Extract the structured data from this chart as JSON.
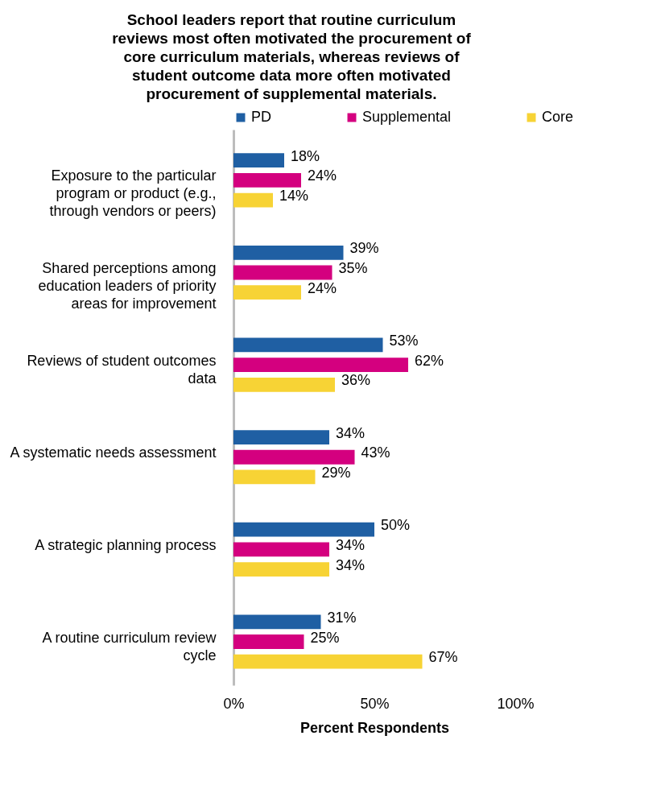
{
  "chart_data": {
    "type": "bar",
    "orientation": "horizontal",
    "title": "School leaders report that routine curriculum reviews most often motivated the procurement of core curriculum materials, whereas reviews of student outcome data more often motivated procurement of supplemental materials.",
    "xlabel": "Percent Respondents",
    "categories": [
      "Exposure to the particular program or product (e.g., through vendors or peers)",
      "Shared perceptions among education leaders of priority areas for improvement",
      "Reviews of student outcomes data",
      "A systematic needs assessment",
      "A strategic planning process",
      "A routine curriculum review cycle"
    ],
    "series": [
      {
        "name": "PD",
        "color": "#1f5fa3",
        "values": [
          18,
          39,
          53,
          34,
          50,
          31
        ],
        "value_labels": [
          "18%",
          "39%",
          "53%",
          "34%",
          "50%",
          "31%"
        ]
      },
      {
        "name": "Supplemental",
        "color": "#d4007f",
        "values": [
          24,
          35,
          62,
          43,
          34,
          25
        ],
        "value_labels": [
          "24%",
          "35%",
          "62%",
          "43%",
          "34%",
          "25%"
        ]
      },
      {
        "name": "Core",
        "color": "#f7d335",
        "values": [
          14,
          24,
          36,
          29,
          34,
          67
        ],
        "value_labels": [
          "14%",
          "24%",
          "36%",
          "29%",
          "34%",
          "67%"
        ]
      }
    ],
    "xlim": [
      0,
      100
    ],
    "xticks": [
      {
        "value": 0,
        "label": "0%"
      },
      {
        "value": 50,
        "label": "50%"
      },
      {
        "value": 100,
        "label": "100%"
      }
    ],
    "grid": false,
    "legend": "top"
  }
}
